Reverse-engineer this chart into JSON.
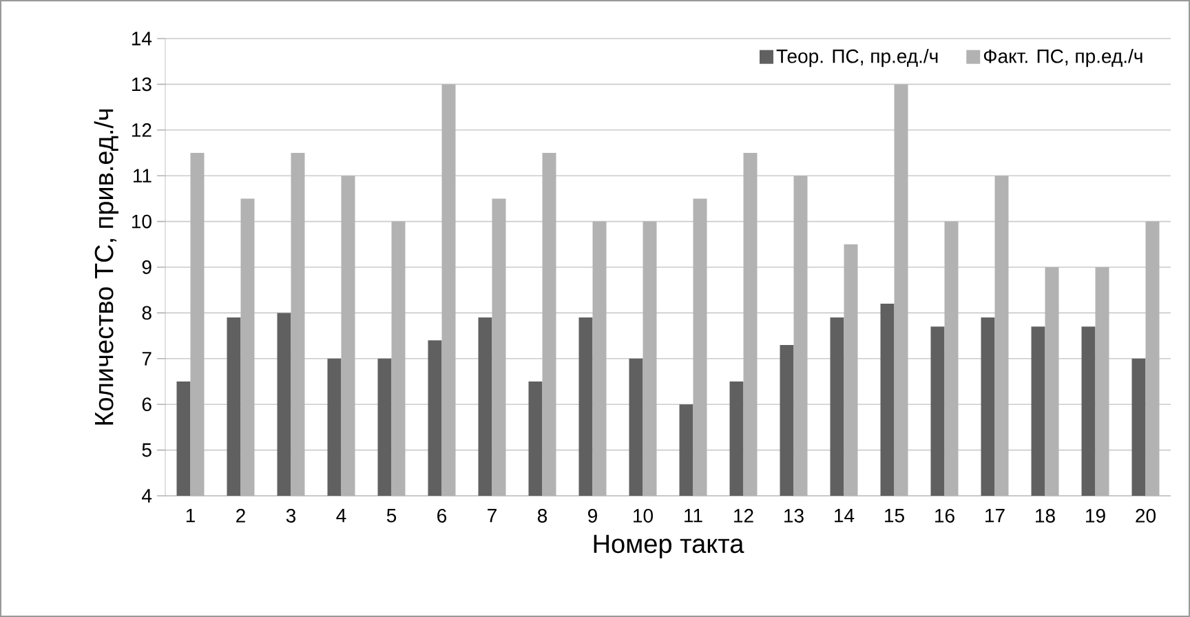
{
  "chart_data": {
    "type": "bar",
    "xlabel": "Номер такта",
    "ylabel": "Количество ТС, прив.ед./ч",
    "categories": [
      "1",
      "2",
      "3",
      "4",
      "5",
      "6",
      "7",
      "8",
      "9",
      "10",
      "11",
      "12",
      "13",
      "14",
      "15",
      "16",
      "17",
      "18",
      "19",
      "20"
    ],
    "series": [
      {
        "name": "Теор. ПС, пр.ед./ч",
        "color": "#606060",
        "values": [
          6.5,
          7.9,
          8,
          7,
          7,
          7.4,
          7.9,
          6.5,
          7.9,
          7,
          6,
          6.5,
          7.3,
          7.9,
          8.2,
          7.7,
          7.9,
          7.7,
          7.7,
          7
        ]
      },
      {
        "name": "Факт. ПС, пр.ед./ч",
        "color": "#b2b2b2",
        "values": [
          11.5,
          10.5,
          11.5,
          11,
          10,
          13,
          10.5,
          11.5,
          10,
          10,
          10.5,
          11.5,
          11,
          9.5,
          13,
          10,
          11,
          9,
          9,
          10
        ]
      }
    ],
    "ylim": [
      4,
      14
    ],
    "yticks": [
      4,
      5,
      6,
      7,
      8,
      9,
      10,
      11,
      12,
      13,
      14
    ],
    "grid": "y",
    "legend": "top right"
  }
}
